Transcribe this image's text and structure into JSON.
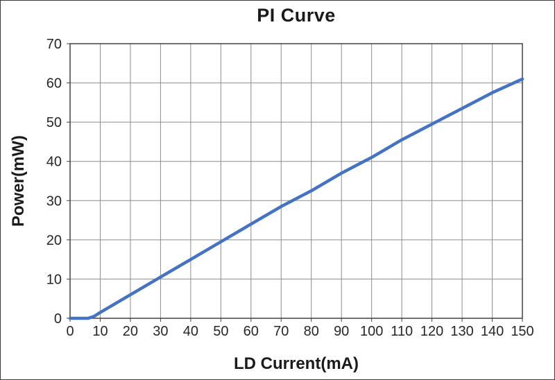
{
  "chart_data": {
    "type": "line",
    "title": "PI Curve",
    "xlabel": "LD Current(mA)",
    "ylabel": "Power(mW)",
    "xlim": [
      0,
      150
    ],
    "ylim": [
      0,
      70
    ],
    "x_ticks": [
      0,
      10,
      20,
      30,
      40,
      50,
      60,
      70,
      80,
      90,
      100,
      110,
      120,
      130,
      140,
      150
    ],
    "y_ticks": [
      0,
      10,
      20,
      30,
      40,
      50,
      60,
      70
    ],
    "grid": true,
    "legend": "none",
    "colors": {
      "line": "#4472C4",
      "grid": "#8c8c8c",
      "axis": "#404040",
      "text": "#262626"
    },
    "series": [
      {
        "color": "#4472C4",
        "x": [
          0,
          3,
          6,
          8,
          10,
          20,
          30,
          40,
          50,
          60,
          70,
          80,
          90,
          100,
          110,
          120,
          130,
          140,
          150
        ],
        "y": [
          0,
          0,
          0,
          0.5,
          1.5,
          6,
          10.5,
          15,
          19.5,
          24,
          28.5,
          32.5,
          37,
          41,
          45.5,
          49.5,
          53.5,
          57.5,
          61
        ]
      }
    ]
  }
}
